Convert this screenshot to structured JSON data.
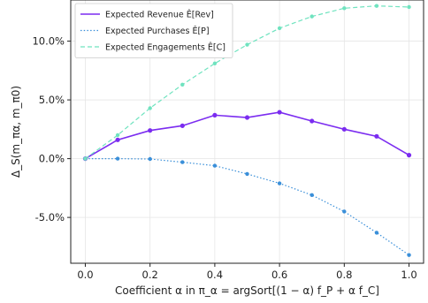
{
  "chart_data": {
    "type": "line",
    "xlabel": "Coefficient α in π_α = argSort[(1 − α) f_P + α f_C]",
    "ylabel": "Δ_S(m_πα, m_π0)",
    "x": [
      0.0,
      0.1,
      0.2,
      0.3,
      0.4,
      0.5,
      0.6,
      0.7,
      0.8,
      0.9,
      1.0
    ],
    "xlim": [
      -0.045,
      1.045
    ],
    "ylim": [
      -0.089,
      0.135
    ],
    "xticks": [
      0.0,
      0.2,
      0.4,
      0.6,
      0.8,
      1.0
    ],
    "xtick_labels": [
      "0.0",
      "0.2",
      "0.4",
      "0.6",
      "0.8",
      "1.0"
    ],
    "yticks": [
      -0.05,
      0.0,
      0.05,
      0.1
    ],
    "ytick_labels": [
      "-5.0%",
      "0.0%",
      "5.0%",
      "10.0%"
    ],
    "grid": true,
    "legend_position": "top-left",
    "series": [
      {
        "name": "Expected Revenue Ê[Rev]",
        "color": "#7b2cf0",
        "style": "solid",
        "values": [
          0.0,
          0.016,
          0.024,
          0.028,
          0.037,
          0.035,
          0.0395,
          0.032,
          0.025,
          0.019,
          0.003
        ]
      },
      {
        "name": "Expected Purchases Ê[P]",
        "color": "#3a8fd9",
        "style": "dotted",
        "values": [
          0.0,
          0.0,
          -0.0003,
          -0.003,
          -0.006,
          -0.013,
          -0.021,
          -0.031,
          -0.045,
          -0.063,
          -0.082
        ]
      },
      {
        "name": "Expected Engagements Ê[C]",
        "color": "#6fe3bf",
        "style": "dashed",
        "values": [
          0.0,
          0.02,
          0.043,
          0.063,
          0.081,
          0.097,
          0.111,
          0.121,
          0.128,
          0.13,
          0.129
        ]
      }
    ]
  }
}
